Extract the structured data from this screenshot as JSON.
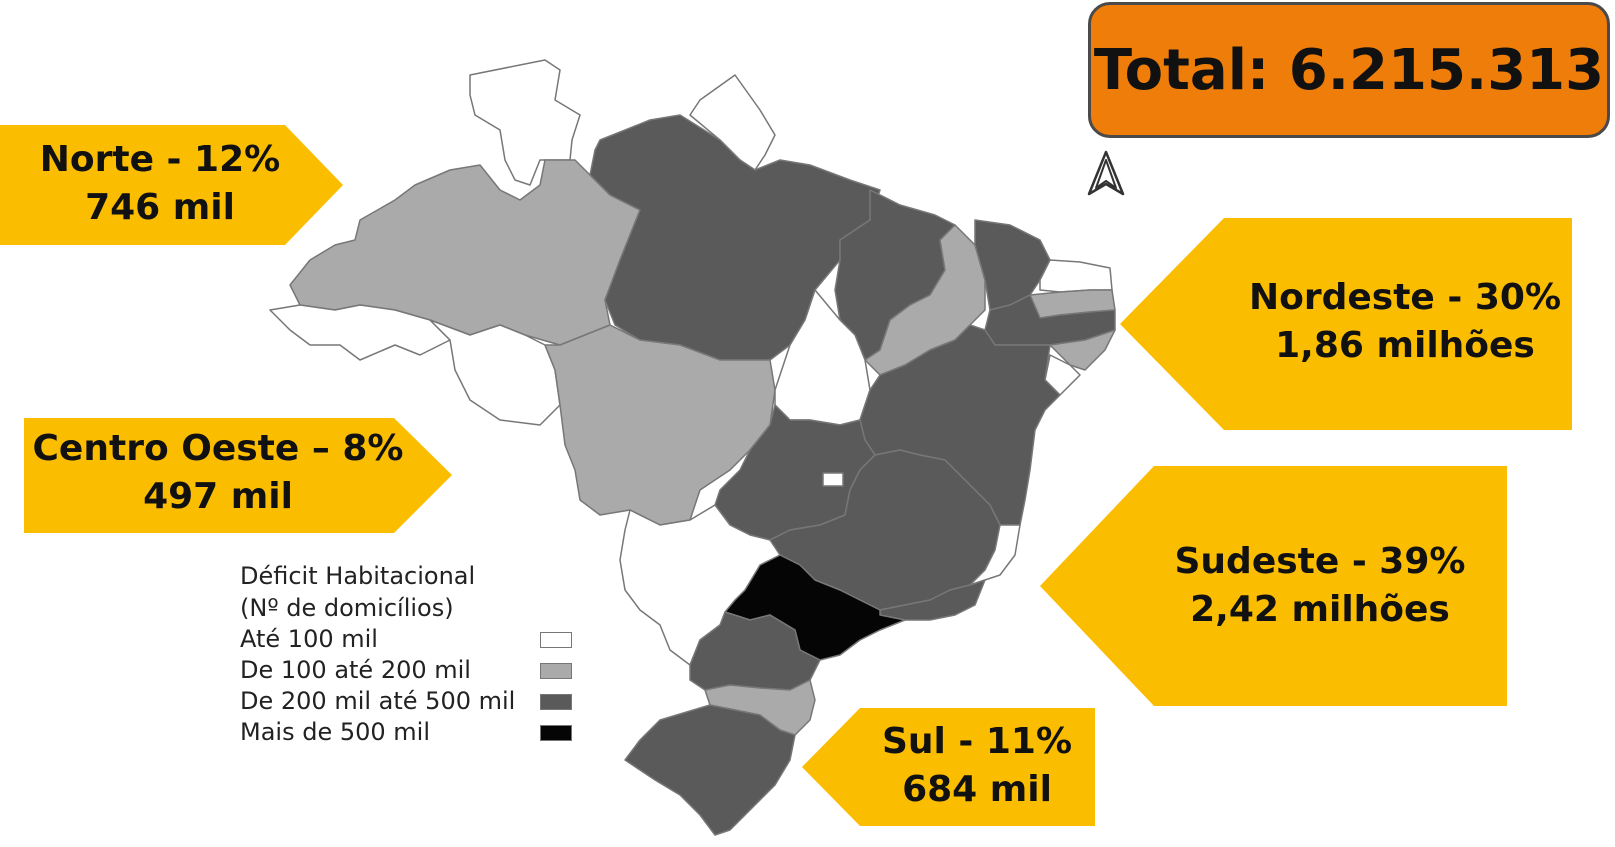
{
  "total": {
    "label": "Total: 6.215.313"
  },
  "regions": [
    {
      "id": "norte",
      "line1": "Norte - 12%",
      "line2": "746 mil"
    },
    {
      "id": "nordeste",
      "line1": "Nordeste - 30%",
      "line2": "1,86 milhões"
    },
    {
      "id": "centro_oeste",
      "line1": "Centro Oeste – 8%",
      "line2": "497 mil"
    },
    {
      "id": "sudeste",
      "line1": "Sudeste - 39%",
      "line2": "2,42 milhões"
    },
    {
      "id": "sul",
      "line1": "Sul - 11%",
      "line2": "684 mil"
    }
  ],
  "legend": {
    "title_line1": "Déficit Habitacional",
    "title_line2": "(Nº de domicílios)",
    "items": [
      {
        "label": "Até 100 mil",
        "color": "#ffffff"
      },
      {
        "label": "De 100 até 200 mil",
        "color": "#aaaaaa"
      },
      {
        "label": "De 200 mil até 500 mil",
        "color": "#5a5a5a"
      },
      {
        "label": "Mais de 500 mil",
        "color": "#050505"
      }
    ]
  },
  "colors": {
    "callout": "#fbbd00",
    "total_box": "#ee7d0a",
    "until_100k": "#ffffff",
    "from_100k_to_200k": "#aaaaaa",
    "from_200k_to_500k": "#5a5a5a",
    "over_500k": "#050505"
  },
  "icons": {
    "north_arrow": "north-arrow-icon"
  }
}
